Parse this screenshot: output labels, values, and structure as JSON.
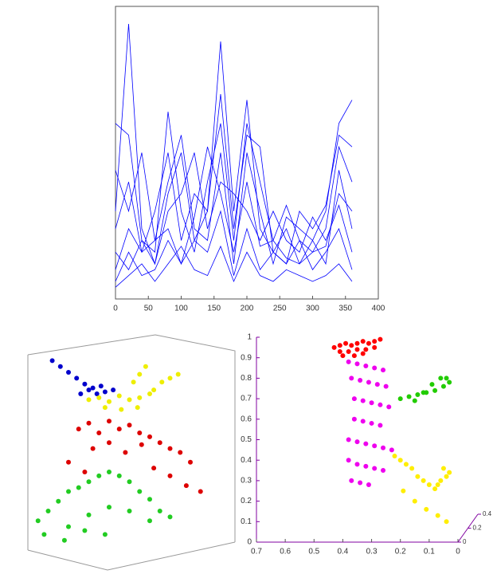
{
  "chart_data": [
    {
      "type": "line",
      "x": [
        0,
        20,
        40,
        60,
        80,
        100,
        120,
        140,
        160,
        180,
        200,
        220,
        240,
        260,
        280,
        300,
        320,
        340,
        360
      ],
      "xlim": [
        0,
        400
      ],
      "xticks": [
        0,
        50,
        100,
        150,
        200,
        250,
        300,
        350,
        400
      ],
      "ylim": [
        0,
        5
      ],
      "series": [
        {
          "color": "#0000ff",
          "values": [
            1.5,
            4.7,
            1.2,
            0.6,
            1.8,
            2.5,
            1.0,
            1.5,
            4.4,
            1.5,
            3.4,
            1.2,
            0.8,
            1.2,
            0.6,
            1.0,
            1.5,
            3.0,
            3.4
          ]
        },
        {
          "color": "#0000ff",
          "values": [
            3.0,
            2.8,
            1.0,
            0.8,
            3.2,
            1.5,
            0.8,
            2.0,
            3.0,
            1.0,
            3.0,
            2.0,
            1.0,
            1.6,
            1.0,
            0.8,
            1.2,
            2.6,
            2.0
          ]
        },
        {
          "color": "#0000ff",
          "values": [
            2.2,
            1.5,
            2.5,
            1.0,
            2.0,
            2.8,
            1.2,
            1.0,
            2.5,
            0.6,
            2.5,
            1.5,
            0.6,
            1.4,
            1.2,
            1.0,
            0.6,
            2.2,
            1.2
          ]
        },
        {
          "color": "#0000ff",
          "values": [
            0.5,
            1.2,
            0.8,
            1.5,
            2.5,
            1.0,
            1.8,
            1.5,
            3.5,
            1.2,
            2.8,
            2.6,
            0.8,
            0.6,
            1.5,
            1.2,
            1.6,
            2.8,
            2.6
          ]
        },
        {
          "color": "#0000ff",
          "values": [
            0.8,
            0.5,
            1.0,
            0.6,
            1.5,
            1.8,
            2.5,
            1.2,
            2.0,
            1.8,
            1.5,
            1.0,
            1.5,
            1.0,
            0.8,
            1.4,
            1.0,
            1.6,
            0.8
          ]
        },
        {
          "color": "#0000ff",
          "values": [
            0.3,
            0.8,
            0.4,
            0.5,
            1.0,
            0.6,
            1.0,
            0.8,
            1.5,
            0.4,
            1.2,
            0.5,
            0.8,
            0.6,
            1.0,
            0.5,
            0.8,
            1.2,
            0.5
          ]
        },
        {
          "color": "#0000ff",
          "values": [
            0.2,
            0.4,
            0.6,
            0.3,
            0.6,
            0.9,
            0.5,
            0.4,
            0.9,
            0.3,
            0.8,
            0.4,
            0.3,
            0.5,
            0.4,
            0.3,
            0.4,
            0.6,
            0.3
          ]
        },
        {
          "color": "#0000ff",
          "values": [
            1.2,
            2.0,
            0.8,
            1.0,
            1.2,
            0.6,
            1.4,
            2.6,
            1.8,
            0.8,
            2.0,
            0.9,
            1.0,
            0.7,
            0.6,
            0.8,
            0.9,
            1.8,
            1.5
          ]
        }
      ]
    },
    {
      "type": "scatter",
      "xlim": [
        0,
        1
      ],
      "ylim": [
        0,
        1
      ],
      "series": [
        {
          "color": "#0000cc",
          "x": [
            0.12,
            0.16,
            0.2,
            0.24,
            0.28,
            0.32,
            0.36,
            0.3,
            0.34,
            0.38,
            0.42,
            0.26
          ],
          "values": [
            0.97,
            0.94,
            0.91,
            0.88,
            0.85,
            0.83,
            0.84,
            0.82,
            0.8,
            0.81,
            0.82,
            0.8
          ]
        },
        {
          "color": "#eeee00",
          "x": [
            0.3,
            0.35,
            0.4,
            0.45,
            0.5,
            0.55,
            0.6,
            0.52,
            0.55,
            0.58,
            0.62,
            0.66,
            0.7,
            0.74,
            0.38,
            0.46,
            0.54
          ],
          "values": [
            0.77,
            0.78,
            0.76,
            0.79,
            0.77,
            0.78,
            0.8,
            0.86,
            0.9,
            0.94,
            0.82,
            0.86,
            0.88,
            0.9,
            0.73,
            0.72,
            0.73
          ]
        },
        {
          "color": "#dd0000",
          "x": [
            0.25,
            0.3,
            0.35,
            0.4,
            0.45,
            0.5,
            0.55,
            0.6,
            0.65,
            0.7,
            0.75,
            0.8,
            0.32,
            0.4,
            0.48,
            0.56,
            0.2,
            0.28,
            0.62,
            0.7,
            0.78,
            0.85
          ],
          "values": [
            0.62,
            0.65,
            0.6,
            0.66,
            0.62,
            0.64,
            0.6,
            0.58,
            0.55,
            0.52,
            0.5,
            0.45,
            0.52,
            0.55,
            0.5,
            0.54,
            0.45,
            0.4,
            0.42,
            0.38,
            0.33,
            0.3
          ]
        },
        {
          "color": "#22cc22",
          "x": [
            0.05,
            0.1,
            0.15,
            0.2,
            0.25,
            0.3,
            0.35,
            0.4,
            0.45,
            0.5,
            0.55,
            0.6,
            0.65,
            0.7,
            0.2,
            0.3,
            0.4,
            0.5,
            0.6,
            0.08,
            0.18,
            0.28,
            0.38
          ],
          "values": [
            0.15,
            0.2,
            0.25,
            0.3,
            0.32,
            0.35,
            0.38,
            0.4,
            0.38,
            0.35,
            0.3,
            0.26,
            0.2,
            0.17,
            0.12,
            0.18,
            0.22,
            0.2,
            0.15,
            0.08,
            0.05,
            0.1,
            0.08
          ]
        }
      ]
    },
    {
      "type": "scatter",
      "xlim": [
        0.7,
        0
      ],
      "ylim": [
        0,
        1
      ],
      "xticks": [
        0.7,
        0.6,
        0.5,
        0.4,
        0.3,
        0.2,
        0.1,
        0
      ],
      "yticks": [
        0,
        0.1,
        0.2,
        0.3,
        0.4,
        0.5,
        0.6,
        0.7,
        0.8,
        0.9,
        1
      ],
      "zlim": [
        0,
        0.4
      ],
      "zticks": [
        0,
        0.2,
        0.4
      ],
      "series": [
        {
          "color": "#ff0000",
          "x": [
            0.43,
            0.41,
            0.39,
            0.37,
            0.35,
            0.33,
            0.31,
            0.29,
            0.27,
            0.41,
            0.38,
            0.35,
            0.32,
            0.29,
            0.4,
            0.36,
            0.33
          ],
          "values": [
            0.95,
            0.96,
            0.97,
            0.96,
            0.97,
            0.98,
            0.97,
            0.98,
            0.99,
            0.93,
            0.93,
            0.94,
            0.94,
            0.95,
            0.91,
            0.91,
            0.92
          ]
        },
        {
          "color": "#ee00ee",
          "x": [
            0.38,
            0.35,
            0.32,
            0.29,
            0.26,
            0.37,
            0.34,
            0.31,
            0.28,
            0.25,
            0.36,
            0.33,
            0.3,
            0.27,
            0.24,
            0.36,
            0.33,
            0.3,
            0.27,
            0.38,
            0.35,
            0.32,
            0.29,
            0.26,
            0.23,
            0.38,
            0.35,
            0.32,
            0.29,
            0.26,
            0.37,
            0.34,
            0.31
          ],
          "values": [
            0.88,
            0.87,
            0.86,
            0.85,
            0.84,
            0.8,
            0.79,
            0.78,
            0.77,
            0.76,
            0.7,
            0.69,
            0.68,
            0.67,
            0.66,
            0.6,
            0.59,
            0.58,
            0.57,
            0.5,
            0.49,
            0.48,
            0.47,
            0.46,
            0.45,
            0.4,
            0.38,
            0.37,
            0.36,
            0.35,
            0.3,
            0.29,
            0.28
          ]
        },
        {
          "color": "#22cc00",
          "x": [
            0.2,
            0.17,
            0.14,
            0.11,
            0.08,
            0.05,
            0.03,
            0.04,
            0.06,
            0.09,
            0.12,
            0.15
          ],
          "values": [
            0.7,
            0.71,
            0.72,
            0.73,
            0.74,
            0.76,
            0.78,
            0.8,
            0.8,
            0.77,
            0.73,
            0.69
          ]
        },
        {
          "color": "#ffee00",
          "x": [
            0.22,
            0.2,
            0.18,
            0.16,
            0.14,
            0.12,
            0.1,
            0.08,
            0.06,
            0.04,
            0.03,
            0.05,
            0.07,
            0.19,
            0.15,
            0.11,
            0.07,
            0.04
          ],
          "values": [
            0.42,
            0.4,
            0.38,
            0.36,
            0.32,
            0.3,
            0.28,
            0.26,
            0.3,
            0.32,
            0.34,
            0.36,
            0.28,
            0.25,
            0.2,
            0.16,
            0.13,
            0.1
          ]
        }
      ]
    }
  ]
}
